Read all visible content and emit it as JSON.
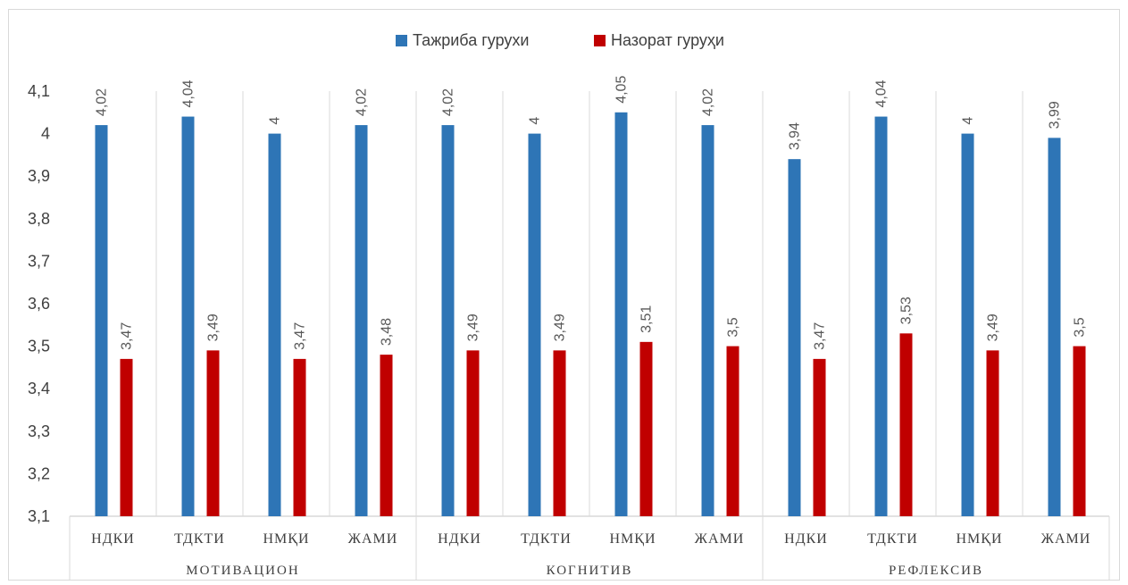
{
  "chart_data": {
    "type": "bar",
    "title": "",
    "xlabel": "",
    "ylabel": "",
    "ylim": [
      3.1,
      4.1
    ],
    "yticks": [
      3.1,
      3.2,
      3.3,
      3.4,
      3.5,
      3.6,
      3.7,
      3.8,
      3.9,
      4.0,
      4.1
    ],
    "ytick_labels": [
      "3,1",
      "3,2",
      "3,3",
      "3,4",
      "3,5",
      "3,6",
      "3,7",
      "3,8",
      "3,9",
      "4",
      "4,1"
    ],
    "grid": "vertical category separators",
    "legend_position": "top-center",
    "groups": [
      {
        "name": "МОТИВАЦИОН",
        "categories": [
          "НДКИ",
          "ТДКТИ",
          "НМҚИ",
          "ЖАМИ"
        ]
      },
      {
        "name": "КОГНИТИВ",
        "categories": [
          "НДКИ",
          "ТДКТИ",
          "НМҚИ",
          "ЖАМИ"
        ]
      },
      {
        "name": "РЕФЛЕКСИВ",
        "categories": [
          "НДКИ",
          "ТДКТИ",
          "НМҚИ",
          "ЖАМИ"
        ]
      }
    ],
    "categories": [
      "НДКИ",
      "ТДКТИ",
      "НМҚИ",
      "ЖАМИ",
      "НДКИ",
      "ТДКТИ",
      "НМҚИ",
      "ЖАМИ",
      "НДКИ",
      "ТДКТИ",
      "НМҚИ",
      "ЖАМИ"
    ],
    "series": [
      {
        "name": "Тажриба гурухи",
        "color": "#2e75b6",
        "values": [
          4.02,
          4.04,
          4.0,
          4.02,
          4.02,
          4.0,
          4.05,
          4.02,
          3.94,
          4.04,
          4.0,
          3.99
        ],
        "labels": [
          "4,02",
          "4,04",
          "4",
          "4,02",
          "4,02",
          "4",
          "4,05",
          "4,02",
          "3,94",
          "4,04",
          "4",
          "3,99"
        ]
      },
      {
        "name": "Назорат гуруҳи",
        "color": "#c00000",
        "values": [
          3.47,
          3.49,
          3.47,
          3.48,
          3.49,
          3.49,
          3.51,
          3.5,
          3.47,
          3.53,
          3.49,
          3.5
        ],
        "labels": [
          "3,47",
          "3,49",
          "3,47",
          "3,48",
          "3,49",
          "3,49",
          "3,51",
          "3,5",
          "3,47",
          "3,53",
          "3,49",
          "3,5"
        ]
      }
    ]
  }
}
